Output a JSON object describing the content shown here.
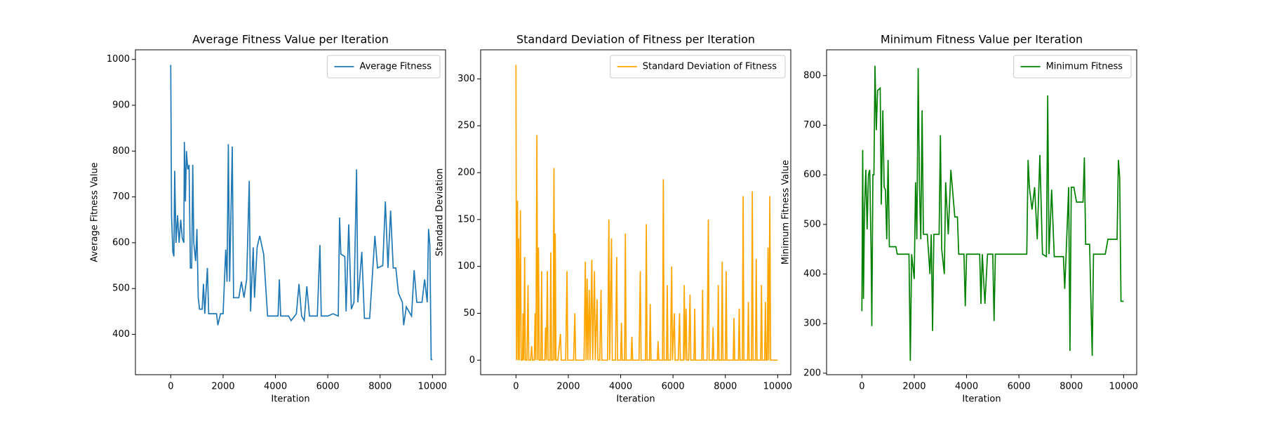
{
  "chart_data": [
    {
      "type": "line",
      "title": "Average Fitness Value per Iteration",
      "x_label": "Iteration",
      "y_label": "Average Fitness Value",
      "legend": "upper right",
      "xlim": [
        -1350,
        10500
      ],
      "xticks": [
        0,
        2000,
        4000,
        6000,
        8000,
        10000
      ],
      "ylim": [
        312,
        1021
      ],
      "yticks": [
        400,
        500,
        600,
        700,
        800,
        900,
        1000
      ],
      "x": [
        0,
        30,
        80,
        120,
        150,
        200,
        260,
        320,
        380,
        440,
        500,
        520,
        560,
        600,
        650,
        700,
        750,
        800,
        840,
        880,
        950,
        1000,
        1050,
        1100,
        1200,
        1250,
        1300,
        1400,
        1450,
        1600,
        1750,
        1800,
        1900,
        2000,
        2100,
        2150,
        2200,
        2250,
        2350,
        2400,
        2600,
        2700,
        2800,
        2900,
        3000,
        3050,
        3150,
        3200,
        3300,
        3400,
        3550,
        3700,
        3900,
        4100,
        4150,
        4200,
        4500,
        4600,
        4800,
        4900,
        5000,
        5100,
        5200,
        5300,
        5600,
        5700,
        5750,
        6000,
        6200,
        6400,
        6450,
        6500,
        6650,
        6700,
        6800,
        6900,
        7000,
        7100,
        7150,
        7300,
        7400,
        7600,
        7800,
        7900,
        8100,
        8200,
        8300,
        8400,
        8500,
        8600,
        8700,
        8850,
        8900,
        9000,
        9200,
        9300,
        9400,
        9600,
        9700,
        9800,
        9850,
        9900,
        9950,
        10000
      ],
      "series": [
        {
          "name": "Average Fitness",
          "color": "#1f77b4",
          "values": [
            988,
            660,
            580,
            570,
            757,
            600,
            660,
            600,
            650,
            610,
            600,
            820,
            690,
            800,
            760,
            770,
            545,
            545,
            770,
            600,
            560,
            630,
            480,
            455,
            455,
            510,
            445,
            545,
            445,
            445,
            445,
            420,
            445,
            445,
            585,
            515,
            815,
            515,
            810,
            480,
            480,
            515,
            480,
            520,
            735,
            450,
            590,
            480,
            590,
            615,
            575,
            440,
            440,
            440,
            520,
            440,
            440,
            430,
            445,
            510,
            440,
            430,
            505,
            440,
            440,
            595,
            440,
            440,
            445,
            440,
            655,
            575,
            570,
            450,
            640,
            455,
            470,
            760,
            470,
            580,
            435,
            435,
            615,
            545,
            550,
            690,
            545,
            670,
            545,
            545,
            490,
            470,
            420,
            460,
            440,
            540,
            470,
            470,
            520,
            470,
            630,
            595,
            345,
            345
          ]
        }
      ]
    },
    {
      "type": "line",
      "title": "Standard Deviation of Fitness per Iteration",
      "x_label": "Iteration",
      "y_label": "Standard Deviation",
      "legend": "upper right",
      "xlim": [
        -1350,
        10500
      ],
      "xticks": [
        0,
        2000,
        4000,
        6000,
        8000,
        10000
      ],
      "ylim": [
        -15.5,
        331
      ],
      "yticks": [
        0,
        50,
        100,
        150,
        200,
        250,
        300
      ],
      "x": [
        0,
        20,
        60,
        80,
        100,
        130,
        170,
        200,
        250,
        270,
        300,
        330,
        360,
        420,
        460,
        490,
        560,
        600,
        630,
        700,
        730,
        760,
        800,
        830,
        860,
        890,
        950,
        980,
        1010,
        1100,
        1130,
        1160,
        1200,
        1230,
        1300,
        1330,
        1360,
        1420,
        1450,
        1480,
        1500,
        1530,
        1600,
        1700,
        1730,
        1900,
        1950,
        1980,
        2200,
        2250,
        2280,
        2600,
        2650,
        2680,
        2720,
        2750,
        2800,
        2830,
        2900,
        2930,
        3000,
        3030,
        3100,
        3130,
        3200,
        3250,
        3280,
        3500,
        3550,
        3580,
        3650,
        3680,
        3800,
        3850,
        3880,
        4000,
        4030,
        4060,
        4150,
        4180,
        4210,
        4400,
        4430,
        4460,
        4700,
        4750,
        4780,
        4950,
        4980,
        5010,
        5100,
        5130,
        5160,
        5400,
        5430,
        5460,
        5600,
        5630,
        5660,
        5750,
        5780,
        5810,
        5900,
        5950,
        5980,
        6050,
        6080,
        6200,
        6250,
        6280,
        6400,
        6430,
        6460,
        6500,
        6530,
        6600,
        6650,
        6680,
        6800,
        6830,
        6860,
        7100,
        7130,
        7160,
        7300,
        7350,
        7380,
        7500,
        7530,
        7560,
        7700,
        7730,
        7760,
        7850,
        7880,
        7910,
        8000,
        8030,
        8060,
        8300,
        8330,
        8360,
        8500,
        8530,
        8560,
        8650,
        8680,
        8710,
        8850,
        8880,
        8910,
        9000,
        9030,
        9060,
        9150,
        9180,
        9210,
        9350,
        9380,
        9410,
        9500,
        9530,
        9560,
        9600,
        9630,
        9660,
        9700,
        9730,
        10000
      ],
      "series": [
        {
          "name": "Standard Deviation of Fitness",
          "color": "#ffa500",
          "values": [
            315,
            0,
            170,
            0,
            130,
            0,
            160,
            0,
            0,
            50,
            0,
            110,
            0,
            0,
            80,
            0,
            0,
            15,
            0,
            0,
            50,
            0,
            240,
            0,
            120,
            0,
            0,
            95,
            0,
            0,
            35,
            0,
            95,
            0,
            0,
            115,
            0,
            0,
            205,
            0,
            135,
            0,
            0,
            28,
            0,
            0,
            95,
            0,
            0,
            50,
            0,
            0,
            105,
            0,
            87,
            0,
            75,
            0,
            107,
            0,
            95,
            0,
            65,
            0,
            0,
            75,
            0,
            0,
            150,
            0,
            130,
            0,
            0,
            110,
            0,
            0,
            40,
            0,
            0,
            135,
            0,
            0,
            25,
            0,
            0,
            95,
            0,
            0,
            145,
            0,
            0,
            60,
            0,
            0,
            20,
            0,
            0,
            193,
            0,
            0,
            80,
            0,
            0,
            100,
            0,
            50,
            0,
            0,
            50,
            0,
            0,
            80,
            0,
            55,
            0,
            0,
            70,
            0,
            0,
            55,
            0,
            0,
            75,
            0,
            0,
            150,
            0,
            0,
            35,
            0,
            0,
            80,
            0,
            0,
            105,
            0,
            0,
            95,
            0,
            0,
            45,
            0,
            0,
            55,
            0,
            0,
            175,
            0,
            0,
            62,
            0,
            0,
            180,
            0,
            0,
            108,
            0,
            0,
            80,
            0,
            0,
            62,
            0,
            0,
            120,
            0,
            175,
            0,
            0
          ]
        }
      ]
    },
    {
      "type": "line",
      "title": "Minimum Fitness Value per Iteration",
      "x_label": "Iteration",
      "y_label": "Minimum Fitness Value",
      "legend": "upper right",
      "xlim": [
        -1350,
        10500
      ],
      "xticks": [
        0,
        2000,
        4000,
        6000,
        8000,
        10000
      ],
      "ylim": [
        197,
        852
      ],
      "yticks": [
        200,
        300,
        400,
        500,
        600,
        700,
        800
      ],
      "x": [
        0,
        30,
        60,
        100,
        150,
        200,
        250,
        300,
        350,
        380,
        420,
        460,
        500,
        550,
        600,
        700,
        740,
        800,
        850,
        900,
        950,
        1000,
        1050,
        1300,
        1350,
        1800,
        1850,
        1900,
        2000,
        2050,
        2100,
        2150,
        2200,
        2250,
        2300,
        2350,
        2500,
        2600,
        2650,
        2700,
        2750,
        2950,
        3000,
        3050,
        3150,
        3200,
        3300,
        3400,
        3550,
        3650,
        3700,
        3900,
        3950,
        4000,
        4500,
        4550,
        4600,
        4700,
        4800,
        5000,
        5050,
        5100,
        6300,
        6350,
        6400,
        6500,
        6600,
        6700,
        6800,
        6900,
        7050,
        7100,
        7150,
        7250,
        7350,
        7700,
        7750,
        7800,
        7900,
        7950,
        8000,
        8100,
        8200,
        8300,
        8450,
        8500,
        8550,
        8700,
        8800,
        8850,
        9300,
        9400,
        9750,
        9800,
        9850,
        9900,
        10000
      ],
      "series": [
        {
          "name": "Minimum Fitness",
          "color": "#008000",
          "values": [
            325,
            650,
            350,
            530,
            610,
            490,
            600,
            610,
            450,
            295,
            600,
            600,
            820,
            690,
            770,
            775,
            540,
            730,
            575,
            570,
            470,
            630,
            455,
            455,
            440,
            440,
            225,
            440,
            390,
            585,
            470,
            815,
            575,
            470,
            730,
            480,
            480,
            400,
            480,
            285,
            480,
            480,
            680,
            450,
            400,
            585,
            480,
            610,
            515,
            515,
            440,
            440,
            335,
            440,
            440,
            340,
            440,
            340,
            440,
            440,
            305,
            440,
            440,
            630,
            575,
            530,
            575,
            470,
            640,
            440,
            435,
            760,
            440,
            570,
            435,
            435,
            370,
            435,
            575,
            245,
            575,
            575,
            545,
            545,
            545,
            635,
            460,
            460,
            235,
            440,
            440,
            470,
            470,
            630,
            595,
            345,
            345
          ]
        }
      ]
    }
  ]
}
